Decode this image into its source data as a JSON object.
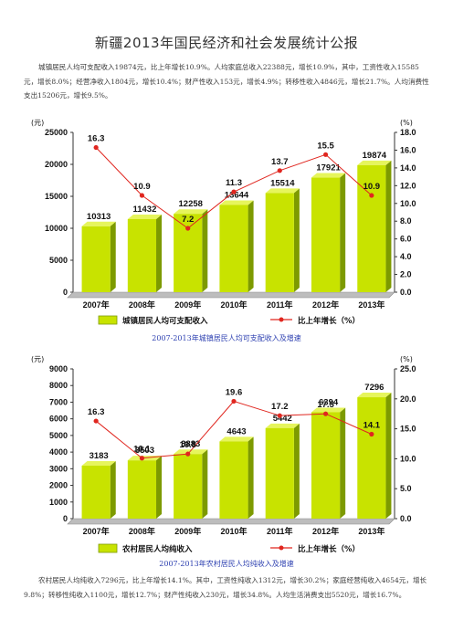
{
  "document": {
    "title": "新疆2013年国民经济和社会发展统计公报",
    "paragraph_urban": "城镇居民人均可支配收入19874元，比上年增长10.9%。人均家庭总收入22388元，增长10.9%，其中，工资性收入15585元，增长8.0%；经营净收入1804元，增长10.4%；财产性收入153元，增长4.9%；转移性收入4846元，增长21.7%。人均消费性支出15206元，增长9.5%。",
    "caption_urban": "2007-2013年城镇居民人均可支配收入及增速",
    "caption_rural": "2007-2013年农村居民人均纯收入及增速",
    "paragraph_rural": "农村居民人均纯收入7296元，比上年增长14.1%。其中，工资性纯收入1312元，增长30.2%；家庭经营纯收入4654元，增长9.8%；转移性纯收入1100元，增长12.7%；财产性纯收入230元，增长34.8%。人均生活消费支出5520元，增长16.7%。"
  },
  "colors": {
    "bar_front": "#c8e300",
    "bar_side": "#7d9a00",
    "bar_top": "#e6f55c",
    "line": "#e0261f",
    "floor": "#9a9a9a"
  },
  "chart_data": [
    {
      "type": "bar",
      "categories": [
        "2007年",
        "2008年",
        "2009年",
        "2010年",
        "2011年",
        "2012年",
        "2013年"
      ],
      "left_unit": "(元)",
      "right_unit": "(%)",
      "ylim": [
        0,
        25000
      ],
      "yticks": [
        "0",
        "5000",
        "10000",
        "15000",
        "20000",
        "25000"
      ],
      "y2lim": [
        0,
        18
      ],
      "y2ticks": [
        "0.0",
        "2.0",
        "4.0",
        "6.0",
        "8.0",
        "10.0",
        "12.0",
        "14.0",
        "16.0",
        "18.0"
      ],
      "series": [
        {
          "name": "城镇居民人均可支配收入",
          "kind": "bar",
          "values": [
            10313,
            11432,
            12258,
            13644,
            15514,
            17921,
            19874
          ]
        },
        {
          "name": "比上年增长（%）",
          "kind": "line",
          "values": [
            16.3,
            10.9,
            7.2,
            11.3,
            13.7,
            15.5,
            10.9
          ]
        }
      ]
    },
    {
      "type": "bar",
      "categories": [
        "2007年",
        "2008年",
        "2009年",
        "2010年",
        "2011年",
        "2012年",
        "2013年"
      ],
      "left_unit": "(元)",
      "right_unit": "(%)",
      "ylim": [
        0,
        9000
      ],
      "yticks": [
        "0",
        "1000",
        "2000",
        "3000",
        "4000",
        "5000",
        "6000",
        "7000",
        "8000",
        "9000"
      ],
      "y2lim": [
        0,
        25
      ],
      "y2ticks": [
        "0.0",
        "5.0",
        "10.0",
        "15.0",
        "20.0",
        "25.0"
      ],
      "series": [
        {
          "name": "农村居民人均纯收入",
          "kind": "bar",
          "values": [
            3183,
            3503,
            3883,
            4643,
            5442,
            6394,
            7296
          ]
        },
        {
          "name": "比上年增长（%）",
          "kind": "line",
          "values": [
            16.3,
            10.1,
            10.8,
            19.6,
            17.2,
            17.5,
            14.1
          ]
        }
      ]
    }
  ]
}
